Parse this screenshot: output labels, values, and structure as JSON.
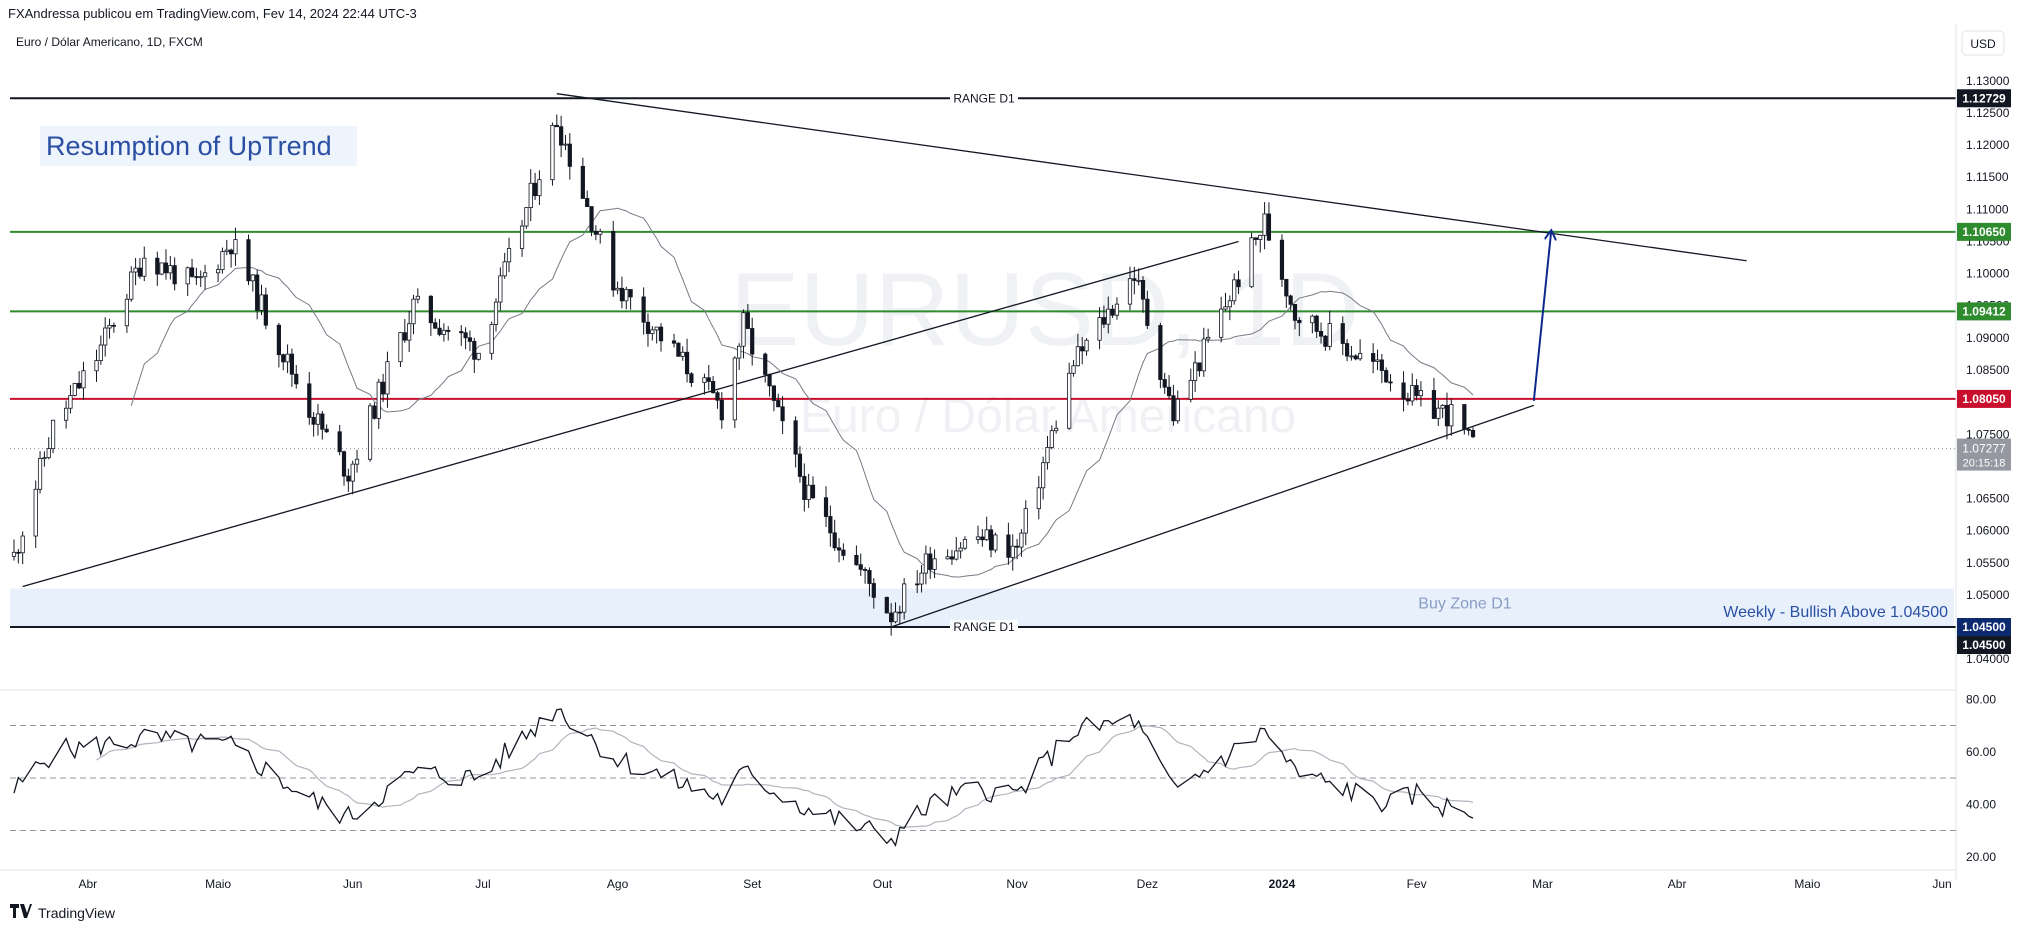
{
  "header": {
    "published": "FXAndressa publicou em TradingView.com, Fev 14, 2024 22:44 UTC-3"
  },
  "footer": {
    "brand": "TradingView",
    "logo_icon": "tradingview-logo-icon"
  },
  "colors": {
    "bull": "#ffffff",
    "bear": "#131722",
    "wick": "#131722",
    "green_level": "#2e8b2e",
    "red_level": "#c8102e",
    "navy_label": "#0d2a6e",
    "ma": "#787b86",
    "buy_zone": "#e8f1fb",
    "annotation_blue": "#2a4fa3",
    "projection_arrow": "#0d2a8a",
    "current_price_tag": "#9598a1"
  },
  "chart_data": [
    {
      "type": "candlestick",
      "title": "Euro / Dólar Americano, 1D, FXCM",
      "watermark": [
        "EURUSD, 1D",
        "Euro / Dólar Americano"
      ],
      "currency_button": "USD",
      "x_ticks": [
        "Abr",
        "Maio",
        "Jun",
        "Jul",
        "Ago",
        "Set",
        "Out",
        "Nov",
        "Dez",
        "2024",
        "Fev",
        "Mar",
        "Abr",
        "Maio",
        "Jun"
      ],
      "y_ticks": [
        "1.13000",
        "1.12500",
        "1.12000",
        "1.11500",
        "1.11000",
        "1.10500",
        "1.10000",
        "1.09500",
        "1.09000",
        "1.08500",
        "1.08000",
        "1.07500",
        "1.07000",
        "1.06500",
        "1.06000",
        "1.05500",
        "1.05000",
        "1.04500",
        "1.04000"
      ],
      "ylim": [
        1.038,
        1.132
      ],
      "anchors": [
        {
          "x": "2023-03-15",
          "y": 1.056
        },
        {
          "x": "2023-03-24",
          "y": 1.076
        },
        {
          "x": "2023-04-03",
          "y": 1.087
        },
        {
          "x": "2023-04-14",
          "y": 1.103
        },
        {
          "x": "2023-04-26",
          "y": 1.098
        },
        {
          "x": "2023-05-04",
          "y": 1.105
        },
        {
          "x": "2023-05-22",
          "y": 1.079
        },
        {
          "x": "2023-05-31",
          "y": 1.069
        },
        {
          "x": "2023-06-15",
          "y": 1.095
        },
        {
          "x": "2023-06-30",
          "y": 1.088
        },
        {
          "x": "2023-07-18",
          "y": 1.124
        },
        {
          "x": "2023-07-31",
          "y": 1.099
        },
        {
          "x": "2023-08-25",
          "y": 1.079
        },
        {
          "x": "2023-08-30",
          "y": 1.092
        },
        {
          "x": "2023-09-14",
          "y": 1.065
        },
        {
          "x": "2023-10-03",
          "y": 1.047
        },
        {
          "x": "2023-10-12",
          "y": 1.056
        },
        {
          "x": "2023-10-23",
          "y": 1.059
        },
        {
          "x": "2023-11-01",
          "y": 1.057
        },
        {
          "x": "2023-11-14",
          "y": 1.086
        },
        {
          "x": "2023-11-28",
          "y": 1.1
        },
        {
          "x": "2023-12-07",
          "y": 1.078
        },
        {
          "x": "2023-12-28",
          "y": 1.108
        },
        {
          "x": "2024-01-04",
          "y": 1.094
        },
        {
          "x": "2024-01-17",
          "y": 1.088
        },
        {
          "x": "2024-01-26",
          "y": 1.084
        },
        {
          "x": "2024-02-01",
          "y": 1.08
        },
        {
          "x": "2024-02-09",
          "y": 1.078
        },
        {
          "x": "2024-02-14",
          "y": 1.0728
        }
      ],
      "moving_average": "20-period",
      "last_price": "1.07277",
      "countdown": "20:15:18",
      "levels": [
        {
          "price": 1.12729,
          "label": "1.12729",
          "text": "RANGE D1",
          "style": "black"
        },
        {
          "price": 1.1065,
          "label": "1.10650",
          "style": "green"
        },
        {
          "price": 1.09412,
          "label": "1.09412",
          "style": "green"
        },
        {
          "price": 1.0805,
          "label": "1.08050",
          "style": "red"
        },
        {
          "price": 1.045,
          "label": "1.04500",
          "text": "RANGE D1",
          "style": "navy"
        }
      ],
      "buy_zone": {
        "from": 1.045,
        "to": 1.051,
        "text": "Buy Zone D1"
      },
      "trendlines": [
        {
          "from": {
            "x": "2023-03-17",
            "y": 1.0513
          },
          "to": {
            "x": "2023-12-22",
            "y": 1.105
          }
        },
        {
          "from": {
            "x": "2023-07-18",
            "y": 1.128
          },
          "to": {
            "x": "2024-04-17",
            "y": 1.102
          }
        },
        {
          "from": {
            "x": "2023-10-03",
            "y": 1.045
          },
          "to": {
            "x": "2024-02-28",
            "y": 1.0795
          }
        }
      ],
      "projection_arrow": {
        "from": {
          "x": "2024-02-28",
          "y": 1.0802
        },
        "to": {
          "x": "2024-03-03",
          "y": 1.1066
        }
      },
      "annotations": [
        "Resumption of UpTrend",
        "Weekly - Bullish Above 1.04500",
        "Buy Zone D1",
        "RANGE D1"
      ]
    },
    {
      "type": "line",
      "indicator": "RSI",
      "y_ticks": [
        "80.00",
        "60.00",
        "40.00",
        "20.00"
      ],
      "ylim": [
        18,
        82
      ],
      "bands": [
        30,
        50,
        70
      ],
      "anchors": [
        {
          "x": "2023-03-15",
          "y": 45
        },
        {
          "x": "2023-03-24",
          "y": 60
        },
        {
          "x": "2023-04-14",
          "y": 65
        },
        {
          "x": "2023-05-04",
          "y": 62
        },
        {
          "x": "2023-05-22",
          "y": 42
        },
        {
          "x": "2023-05-31",
          "y": 35
        },
        {
          "x": "2023-06-15",
          "y": 52
        },
        {
          "x": "2023-06-30",
          "y": 50
        },
        {
          "x": "2023-07-18",
          "y": 77
        },
        {
          "x": "2023-07-31",
          "y": 58
        },
        {
          "x": "2023-08-25",
          "y": 42
        },
        {
          "x": "2023-08-30",
          "y": 52
        },
        {
          "x": "2023-09-14",
          "y": 38
        },
        {
          "x": "2023-10-03",
          "y": 27
        },
        {
          "x": "2023-10-12",
          "y": 40
        },
        {
          "x": "2023-10-23",
          "y": 46
        },
        {
          "x": "2023-11-01",
          "y": 44
        },
        {
          "x": "2023-11-14",
          "y": 68
        },
        {
          "x": "2023-11-28",
          "y": 72
        },
        {
          "x": "2023-12-07",
          "y": 45
        },
        {
          "x": "2023-12-28",
          "y": 68
        },
        {
          "x": "2024-01-04",
          "y": 52
        },
        {
          "x": "2024-01-17",
          "y": 45
        },
        {
          "x": "2024-01-26",
          "y": 40
        },
        {
          "x": "2024-02-01",
          "y": 44
        },
        {
          "x": "2024-02-09",
          "y": 38
        },
        {
          "x": "2024-02-14",
          "y": 37
        }
      ],
      "signal": "moving average of RSI"
    }
  ]
}
